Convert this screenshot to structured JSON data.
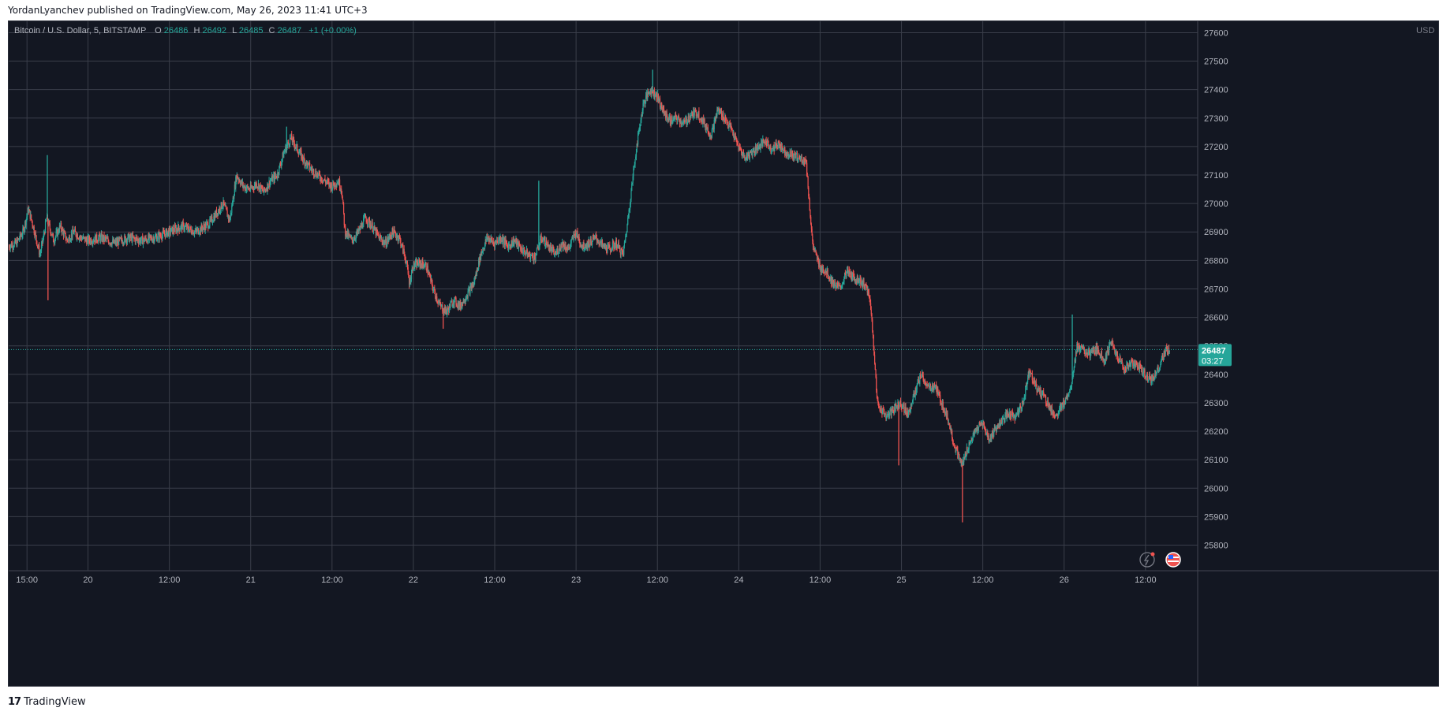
{
  "header": {
    "published": "YordanLyanchev published on TradingView.com, May 26, 2023 11:41 UTC+3"
  },
  "footer": {
    "brand": "TradingView"
  },
  "colors": {
    "background": "#131722",
    "grid": "#3a3e4a",
    "axis_text": "#b2b5be",
    "up": "#26a69a",
    "down": "#ef5350",
    "last_price_bg": "#26a69a"
  },
  "legend": {
    "symbol": "Bitcoin / U.S. Dollar, 5, BITSTAMP",
    "o_label": "O",
    "o_value": "26486",
    "h_label": "H",
    "h_value": "26492",
    "l_label": "L",
    "l_value": "26485",
    "c_label": "C",
    "c_value": "26487",
    "change": "+1 (+0.00%)"
  },
  "last_price": {
    "value": 26487,
    "label": "26487",
    "countdown": "03:27"
  },
  "chart_data": {
    "type": "candlestick",
    "interval": "5",
    "currency_label": "USD",
    "ylim": [
      25710,
      27640
    ],
    "y_ticks": [
      25800,
      25900,
      26000,
      26100,
      26200,
      26300,
      26400,
      26500,
      26600,
      26700,
      26800,
      26900,
      27000,
      27100,
      27200,
      27300,
      27400,
      27500,
      27600
    ],
    "x_ticks": [
      {
        "t": 0,
        "label": "15:00"
      },
      {
        "t": 9,
        "label": "20"
      },
      {
        "t": 21,
        "label": "12:00"
      },
      {
        "t": 33,
        "label": "21"
      },
      {
        "t": 45,
        "label": "12:00"
      },
      {
        "t": 57,
        "label": "22"
      },
      {
        "t": 69,
        "label": "12:00"
      },
      {
        "t": 81,
        "label": "23"
      },
      {
        "t": 93,
        "label": "12:00"
      },
      {
        "t": 105,
        "label": "24"
      },
      {
        "t": 117,
        "label": "12:00"
      },
      {
        "t": 129,
        "label": "25"
      },
      {
        "t": 141,
        "label": "12:00"
      },
      {
        "t": 153,
        "label": "26"
      },
      {
        "t": 165,
        "label": "12:00"
      }
    ],
    "t_range": [
      -2.7,
      172.7
    ],
    "price_path": [
      [
        -2.7,
        26850
      ],
      [
        -1.5,
        26860
      ],
      [
        -0.5,
        26900
      ],
      [
        0.3,
        26980
      ],
      [
        1,
        26920
      ],
      [
        2,
        26820
      ],
      [
        2.5,
        26880
      ],
      [
        3,
        26950
      ],
      [
        4,
        26870
      ],
      [
        5,
        26920
      ],
      [
        6,
        26870
      ],
      [
        7,
        26900
      ],
      [
        8,
        26880
      ],
      [
        9,
        26870
      ],
      [
        11,
        26880
      ],
      [
        13,
        26860
      ],
      [
        15,
        26880
      ],
      [
        17,
        26870
      ],
      [
        19,
        26880
      ],
      [
        21,
        26900
      ],
      [
        23,
        26920
      ],
      [
        25,
        26900
      ],
      [
        27,
        26930
      ],
      [
        29,
        27000
      ],
      [
        30,
        26940
      ],
      [
        31,
        27100
      ],
      [
        32,
        27060
      ],
      [
        33,
        27050
      ],
      [
        34,
        27070
      ],
      [
        35,
        27040
      ],
      [
        36,
        27080
      ],
      [
        37,
        27100
      ],
      [
        38,
        27180
      ],
      [
        39,
        27230
      ],
      [
        40,
        27190
      ],
      [
        41,
        27150
      ],
      [
        42,
        27120
      ],
      [
        43,
        27100
      ],
      [
        44,
        27080
      ],
      [
        45,
        27060
      ],
      [
        46,
        27080
      ],
      [
        46.5,
        27050
      ],
      [
        47,
        26900
      ],
      [
        48,
        26870
      ],
      [
        49,
        26900
      ],
      [
        50,
        26950
      ],
      [
        51,
        26920
      ],
      [
        52,
        26880
      ],
      [
        53,
        26860
      ],
      [
        54,
        26900
      ],
      [
        55,
        26880
      ],
      [
        56,
        26800
      ],
      [
        56.5,
        26720
      ],
      [
        57,
        26780
      ],
      [
        58,
        26790
      ],
      [
        59,
        26780
      ],
      [
        60,
        26700
      ],
      [
        61,
        26640
      ],
      [
        62,
        26620
      ],
      [
        63,
        26660
      ],
      [
        64,
        26640
      ],
      [
        65,
        26680
      ],
      [
        66,
        26720
      ],
      [
        67,
        26820
      ],
      [
        68,
        26880
      ],
      [
        69,
        26860
      ],
      [
        70,
        26880
      ],
      [
        71,
        26850
      ],
      [
        72,
        26870
      ],
      [
        73,
        26840
      ],
      [
        74,
        26820
      ],
      [
        75,
        26810
      ],
      [
        76,
        26880
      ],
      [
        77,
        26850
      ],
      [
        78,
        26820
      ],
      [
        79,
        26860
      ],
      [
        80,
        26840
      ],
      [
        81,
        26900
      ],
      [
        82,
        26850
      ],
      [
        83,
        26860
      ],
      [
        84,
        26880
      ],
      [
        85,
        26850
      ],
      [
        86,
        26840
      ],
      [
        87,
        26860
      ],
      [
        88,
        26820
      ],
      [
        88.5,
        26900
      ],
      [
        89,
        27000
      ],
      [
        89.5,
        27100
      ],
      [
        90,
        27200
      ],
      [
        91,
        27350
      ],
      [
        92,
        27400
      ],
      [
        93,
        27380
      ],
      [
        94,
        27320
      ],
      [
        95,
        27290
      ],
      [
        96,
        27300
      ],
      [
        97,
        27280
      ],
      [
        98,
        27310
      ],
      [
        99,
        27320
      ],
      [
        100,
        27280
      ],
      [
        101,
        27240
      ],
      [
        102,
        27330
      ],
      [
        103,
        27300
      ],
      [
        104,
        27260
      ],
      [
        105,
        27200
      ],
      [
        106,
        27160
      ],
      [
        107,
        27180
      ],
      [
        108,
        27200
      ],
      [
        109,
        27220
      ],
      [
        110,
        27190
      ],
      [
        111,
        27210
      ],
      [
        112,
        27180
      ],
      [
        113,
        27170
      ],
      [
        114,
        27160
      ],
      [
        115,
        27150
      ],
      [
        115.5,
        27000
      ],
      [
        116,
        26850
      ],
      [
        117,
        26780
      ],
      [
        118,
        26760
      ],
      [
        119,
        26720
      ],
      [
        120,
        26700
      ],
      [
        121,
        26760
      ],
      [
        122,
        26740
      ],
      [
        123,
        26730
      ],
      [
        124,
        26700
      ],
      [
        124.5,
        26650
      ],
      [
        125,
        26500
      ],
      [
        125.5,
        26300
      ],
      [
        126,
        26280
      ],
      [
        127,
        26250
      ],
      [
        128,
        26280
      ],
      [
        129,
        26300
      ],
      [
        130,
        26260
      ],
      [
        131,
        26330
      ],
      [
        132,
        26400
      ],
      [
        133,
        26350
      ],
      [
        134,
        26360
      ],
      [
        135,
        26300
      ],
      [
        136,
        26240
      ],
      [
        137,
        26140
      ],
      [
        138,
        26080
      ],
      [
        139,
        26150
      ],
      [
        140,
        26200
      ],
      [
        141,
        26230
      ],
      [
        142,
        26170
      ],
      [
        143,
        26210
      ],
      [
        144,
        26240
      ],
      [
        145,
        26260
      ],
      [
        146,
        26250
      ],
      [
        147,
        26300
      ],
      [
        148,
        26420
      ],
      [
        149,
        26350
      ],
      [
        150,
        26330
      ],
      [
        151,
        26280
      ],
      [
        152,
        26250
      ],
      [
        153,
        26300
      ],
      [
        154,
        26350
      ],
      [
        155,
        26500
      ],
      [
        156,
        26480
      ],
      [
        157,
        26470
      ],
      [
        158,
        26490
      ],
      [
        159,
        26450
      ],
      [
        160,
        26510
      ],
      [
        161,
        26460
      ],
      [
        162,
        26420
      ],
      [
        163,
        26440
      ],
      [
        164,
        26430
      ],
      [
        165,
        26400
      ],
      [
        166,
        26380
      ],
      [
        167,
        26420
      ],
      [
        168,
        26480
      ],
      [
        168.6,
        26487
      ]
    ],
    "wick_spikes": [
      {
        "t": 3.0,
        "price": 27170
      },
      {
        "t": 3.1,
        "price": 26660
      },
      {
        "t": 38.3,
        "price": 27270
      },
      {
        "t": 61.4,
        "price": 26560
      },
      {
        "t": 75.5,
        "price": 27080
      },
      {
        "t": 92.3,
        "price": 27470
      },
      {
        "t": 138.0,
        "price": 25880
      },
      {
        "t": 128.6,
        "price": 26080
      },
      {
        "t": 154.2,
        "price": 26610
      }
    ]
  }
}
